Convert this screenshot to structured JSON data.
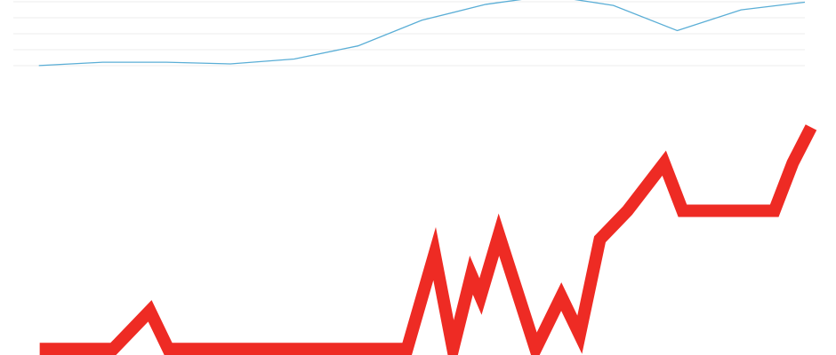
{
  "chart_data": [
    {
      "type": "line",
      "x": [
        0,
        1,
        2,
        3,
        4,
        5,
        6,
        7,
        8,
        9,
        10,
        11,
        12
      ],
      "series": [
        {
          "values": [
            10,
            16,
            16,
            13,
            22,
            46,
            93,
            122,
            138,
            120,
            74,
            112,
            126
          ]
        }
      ],
      "xlim": [
        -0.4,
        12
      ],
      "ylim": [
        0,
        260
      ],
      "grid": true,
      "colors": {
        "line": "#5aaed6",
        "grid": "#ececec"
      }
    },
    {
      "type": "line",
      "x": [
        0,
        2,
        3,
        3.5,
        5,
        10,
        10.75,
        11.25,
        11.75,
        12,
        12.5,
        13.5,
        14.2,
        14.7,
        15.25,
        16,
        17,
        17.5,
        19,
        20,
        20.5,
        21
      ],
      "series": [
        {
          "values": [
            2,
            2,
            18,
            2,
            2,
            2,
            42,
            2,
            33,
            24,
            50,
            2,
            24,
            8,
            48,
            60,
            80,
            60,
            60,
            60,
            80,
            95
          ]
        }
      ],
      "xlim": [
        -0.5,
        21
      ],
      "ylim": [
        -0.5,
        100
      ],
      "grid": false,
      "colors": {
        "line": "#ee2b24"
      }
    }
  ]
}
